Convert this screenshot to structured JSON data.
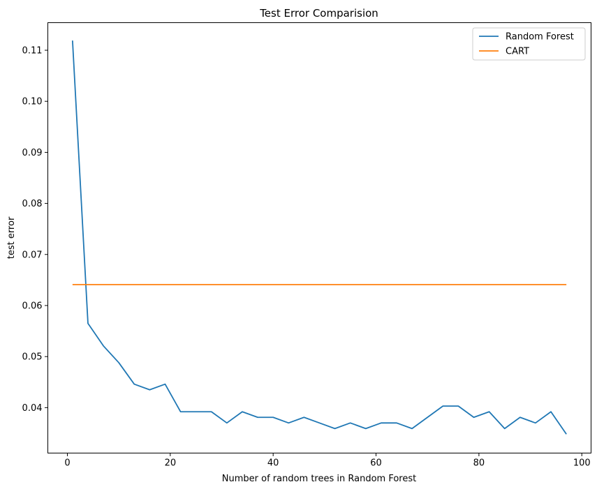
{
  "chart_data": {
    "type": "line",
    "title": "Test Error Comparision",
    "xlabel": "Number of random trees in Random Forest",
    "ylabel": "test error",
    "xlim": [
      -3.8,
      101.8
    ],
    "ylim": [
      0.0311,
      0.1154
    ],
    "xticks": [
      0,
      20,
      40,
      60,
      80,
      100
    ],
    "yticks": [
      0.04,
      0.05,
      0.06,
      0.07,
      0.08,
      0.09,
      0.1,
      0.11
    ],
    "xtick_labels": [
      "0",
      "20",
      "40",
      "60",
      "80",
      "100"
    ],
    "ytick_labels": [
      "0.04",
      "0.05",
      "0.06",
      "0.07",
      "0.08",
      "0.09",
      "0.10",
      "0.11"
    ],
    "grid": false,
    "legend_position": "top-right",
    "series": [
      {
        "name": "Random Forest",
        "color": "#1f77b4",
        "x": [
          1,
          4,
          7,
          10,
          13,
          16,
          19,
          22,
          25,
          28,
          31,
          34,
          37,
          40,
          43,
          46,
          49,
          52,
          55,
          58,
          61,
          64,
          67,
          70,
          73,
          76,
          79,
          82,
          85,
          88,
          91,
          94,
          97
        ],
        "y": [
          0.1119,
          0.0565,
          0.0521,
          0.0488,
          0.0446,
          0.0435,
          0.0446,
          0.0392,
          0.0392,
          0.0392,
          0.037,
          0.0392,
          0.0381,
          0.0381,
          0.037,
          0.0381,
          0.037,
          0.0359,
          0.037,
          0.0359,
          0.037,
          0.037,
          0.0359,
          0.0381,
          0.0403,
          0.0403,
          0.0381,
          0.0392,
          0.0359,
          0.0381,
          0.037,
          0.0392,
          0.0348
        ]
      },
      {
        "name": "CART",
        "color": "#ff7f0e",
        "x": [
          1,
          97
        ],
        "y": [
          0.0641,
          0.0641
        ]
      }
    ]
  }
}
